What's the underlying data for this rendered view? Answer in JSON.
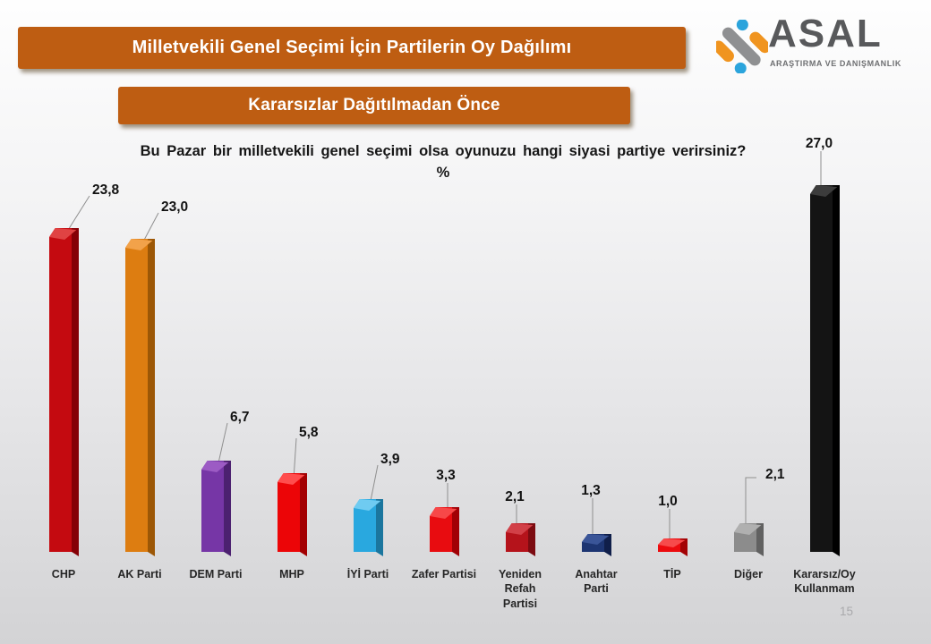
{
  "header": {
    "title": "Milletvekili Genel Seçimi İçin Partilerin Oy Dağılımı",
    "subtitle": "Kararsızlar Dağıtılmadan Önce",
    "banner_color": "#BE5D12"
  },
  "logo": {
    "name": "ASAL",
    "tagline": "ARAŞTIRMA VE DANIŞMANLIK",
    "icon_colors": {
      "orange": "#F0941F",
      "blue": "#2BA4DC",
      "gray": "#8F9092"
    }
  },
  "question": {
    "line1": "Bu Pazar bir milletvekili genel seçimi olsa oyunuzu hangi siyasi partiye verirsiniz?",
    "line2": "%"
  },
  "footer": {
    "page_number": "15"
  },
  "chart_data": {
    "type": "bar",
    "title": "Bu Pazar bir milletvekili genel seçimi olsa oyunuzu hangi siyasi partiye verirsiniz?",
    "unit_label": "%",
    "categories": [
      "CHP",
      "AK Parti",
      "DEM Parti",
      "MHP",
      "İYİ Parti",
      "Zafer Partisi",
      "Yeniden Refah Partisi",
      "Anahtar Parti",
      "TİP",
      "Diğer",
      "Kararsız/Oy Kullanmam"
    ],
    "values": [
      23.8,
      23.0,
      6.7,
      5.8,
      3.9,
      3.3,
      2.1,
      1.3,
      1.0,
      2.1,
      27.0
    ],
    "value_labels": [
      "23,8",
      "23,0",
      "6,7",
      "5,8",
      "3,9",
      "3,3",
      "2,1",
      "1,3",
      "1,0",
      "2,1",
      "27,0"
    ],
    "bar_colors": [
      {
        "main": "#C40A10",
        "dark": "#850006",
        "light": "#E04343"
      },
      {
        "main": "#DD7D11",
        "dark": "#9C5706",
        "light": "#F2A24A"
      },
      {
        "main": "#7636A6",
        "dark": "#4C2170",
        "light": "#9C5BC4"
      },
      {
        "main": "#EC0507",
        "dark": "#A30002",
        "light": "#FF4D4D"
      },
      {
        "main": "#29A8DF",
        "dark": "#1B769E",
        "light": "#6FCBF1"
      },
      {
        "main": "#E80C10",
        "dark": "#A10005",
        "light": "#F74848"
      },
      {
        "main": "#B5131B",
        "dark": "#7C0B11",
        "light": "#D24048"
      },
      {
        "main": "#1D3572",
        "dark": "#101F4A",
        "light": "#3A5598"
      },
      {
        "main": "#EC0B0E",
        "dark": "#A30205",
        "light": "#F74B4B"
      },
      {
        "main": "#8C8C8C",
        "dark": "#616161",
        "light": "#B0B0B0"
      },
      {
        "main": "#141414",
        "dark": "#000000",
        "light": "#3C3C3C"
      }
    ],
    "ylim": [
      0,
      30
    ],
    "grid": false,
    "legend": false,
    "leader_line_color": "#8F8F8F"
  }
}
